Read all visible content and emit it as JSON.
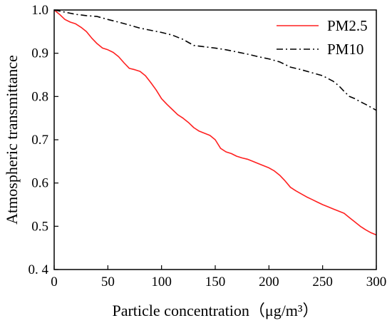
{
  "chart_data": {
    "type": "line",
    "xlabel": "Particle concentration（μg/m³）",
    "ylabel": "Atmospheric transmittance",
    "xlim": [
      0,
      300
    ],
    "ylim": [
      0.4,
      1.0
    ],
    "x_ticks": [
      "0",
      "50",
      "100",
      "150",
      "200",
      "250",
      "300"
    ],
    "y_ticks": [
      "0. 4",
      "0.5",
      "0.6",
      "0.7",
      "0.8",
      "0.9",
      "1.0"
    ],
    "grid": false,
    "legend_position": "top-right",
    "series": [
      {
        "name": "PM2.5",
        "color": "#ff2020",
        "dash": "solid",
        "x": [
          0,
          5,
          10,
          15,
          20,
          25,
          30,
          35,
          40,
          45,
          50,
          55,
          60,
          65,
          70,
          75,
          80,
          85,
          90,
          95,
          100,
          105,
          110,
          115,
          120,
          125,
          130,
          135,
          140,
          145,
          150,
          155,
          160,
          165,
          170,
          175,
          180,
          185,
          190,
          195,
          200,
          205,
          210,
          215,
          220,
          225,
          230,
          235,
          240,
          245,
          250,
          255,
          260,
          265,
          270,
          275,
          280,
          285,
          290,
          295,
          300
        ],
        "y": [
          1.0,
          0.99,
          0.978,
          0.972,
          0.968,
          0.96,
          0.95,
          0.935,
          0.922,
          0.912,
          0.908,
          0.902,
          0.892,
          0.878,
          0.865,
          0.862,
          0.858,
          0.848,
          0.832,
          0.815,
          0.795,
          0.782,
          0.77,
          0.758,
          0.75,
          0.74,
          0.728,
          0.72,
          0.715,
          0.71,
          0.7,
          0.68,
          0.672,
          0.668,
          0.662,
          0.658,
          0.655,
          0.65,
          0.645,
          0.64,
          0.635,
          0.628,
          0.618,
          0.605,
          0.59,
          0.582,
          0.575,
          0.568,
          0.562,
          0.556,
          0.55,
          0.545,
          0.54,
          0.535,
          0.53,
          0.52,
          0.51,
          0.5,
          0.492,
          0.485,
          0.48
        ]
      },
      {
        "name": "PM10",
        "color": "#000000",
        "dash": "dash-dot",
        "x": [
          0,
          10,
          20,
          30,
          40,
          50,
          60,
          70,
          80,
          90,
          100,
          110,
          120,
          130,
          140,
          150,
          160,
          170,
          180,
          190,
          200,
          210,
          220,
          230,
          240,
          250,
          260,
          265,
          270,
          275,
          280,
          285,
          290,
          295,
          300
        ],
        "y": [
          1.0,
          0.995,
          0.99,
          0.987,
          0.985,
          0.978,
          0.972,
          0.965,
          0.958,
          0.953,
          0.948,
          0.942,
          0.932,
          0.918,
          0.915,
          0.912,
          0.908,
          0.903,
          0.898,
          0.892,
          0.887,
          0.88,
          0.868,
          0.862,
          0.855,
          0.848,
          0.835,
          0.825,
          0.812,
          0.8,
          0.795,
          0.788,
          0.782,
          0.775,
          0.768
        ]
      }
    ]
  }
}
